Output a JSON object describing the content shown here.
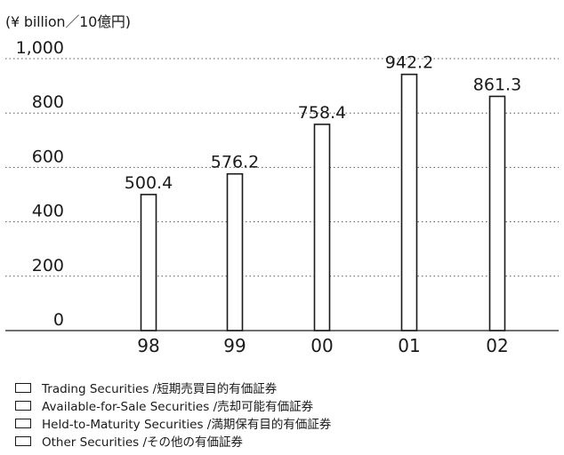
{
  "chart_data": {
    "type": "bar",
    "unit_label": "(¥ billion／10億円)",
    "categories": [
      "98",
      "99",
      "00",
      "01",
      "02"
    ],
    "values": [
      500.4,
      576.2,
      758.4,
      942.2,
      861.3
    ],
    "value_labels": [
      "500.4",
      "576.2",
      "758.4",
      "942.2",
      "861.3"
    ],
    "ylim": [
      0,
      1000
    ],
    "yticks": [
      0,
      200,
      400,
      600,
      800,
      1000
    ],
    "ytick_labels": [
      "0",
      "200",
      "400",
      "600",
      "800",
      "1,000"
    ],
    "grid": true,
    "legend_position": "bottom-left",
    "legend": [
      "Trading Securities /短期売買目的有価証券",
      "Available-for-Sale Securities /売却可能有価証券",
      "Held-to-Maturity Securities /満期保有目的有価証券",
      "Other Securities /その他の有価証券"
    ],
    "colors": {
      "bar_fill": "#ffffff",
      "bar_stroke": "#1a1a1a",
      "text": "#1a1a1a"
    }
  }
}
